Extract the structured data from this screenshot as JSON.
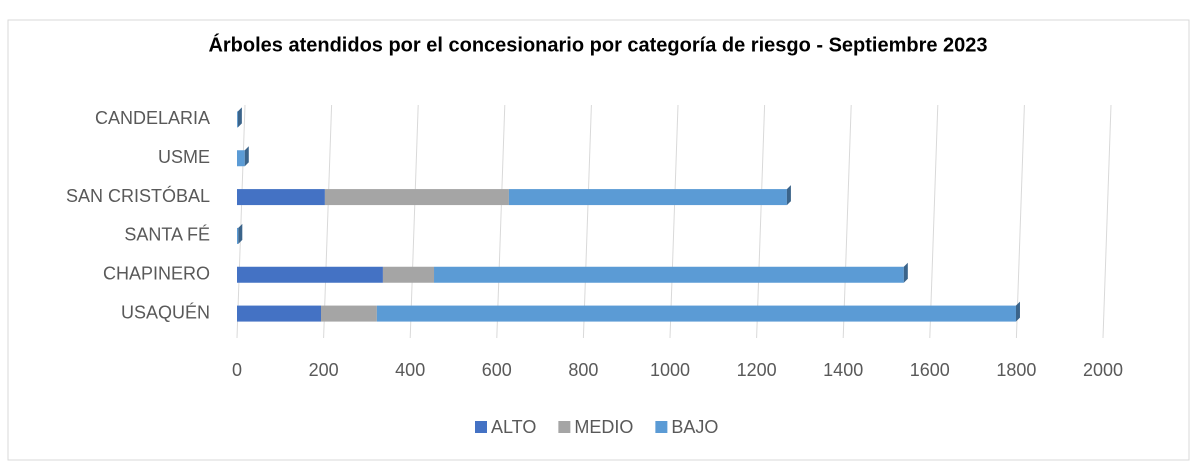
{
  "chart_data": {
    "type": "stacked-barh",
    "title": "Árboles atendidos por el concesionario por categoría de riesgo - Septiembre 2023",
    "categories": [
      "USAQUÉN",
      "CHAPINERO",
      "SANTA FÉ",
      "SAN CRISTÓBAL",
      "USME",
      "CANDELARIA"
    ],
    "series": [
      {
        "name": "ALTO",
        "color": "#4472c4",
        "values": [
          194,
          337,
          0,
          203,
          0,
          0
        ]
      },
      {
        "name": "MEDIO",
        "color": "#a5a5a5",
        "values": [
          129,
          118,
          0,
          425,
          0,
          0
        ]
      },
      {
        "name": "BAJO",
        "color": "#5b9bd5",
        "values": [
          1476,
          1085,
          3,
          642,
          18,
          2
        ]
      }
    ],
    "xlim": [
      0,
      2000
    ],
    "xticks": [
      0,
      200,
      400,
      600,
      800,
      1000,
      1200,
      1400,
      1600,
      1800,
      2000
    ],
    "grid": true,
    "legend": "bottom"
  }
}
